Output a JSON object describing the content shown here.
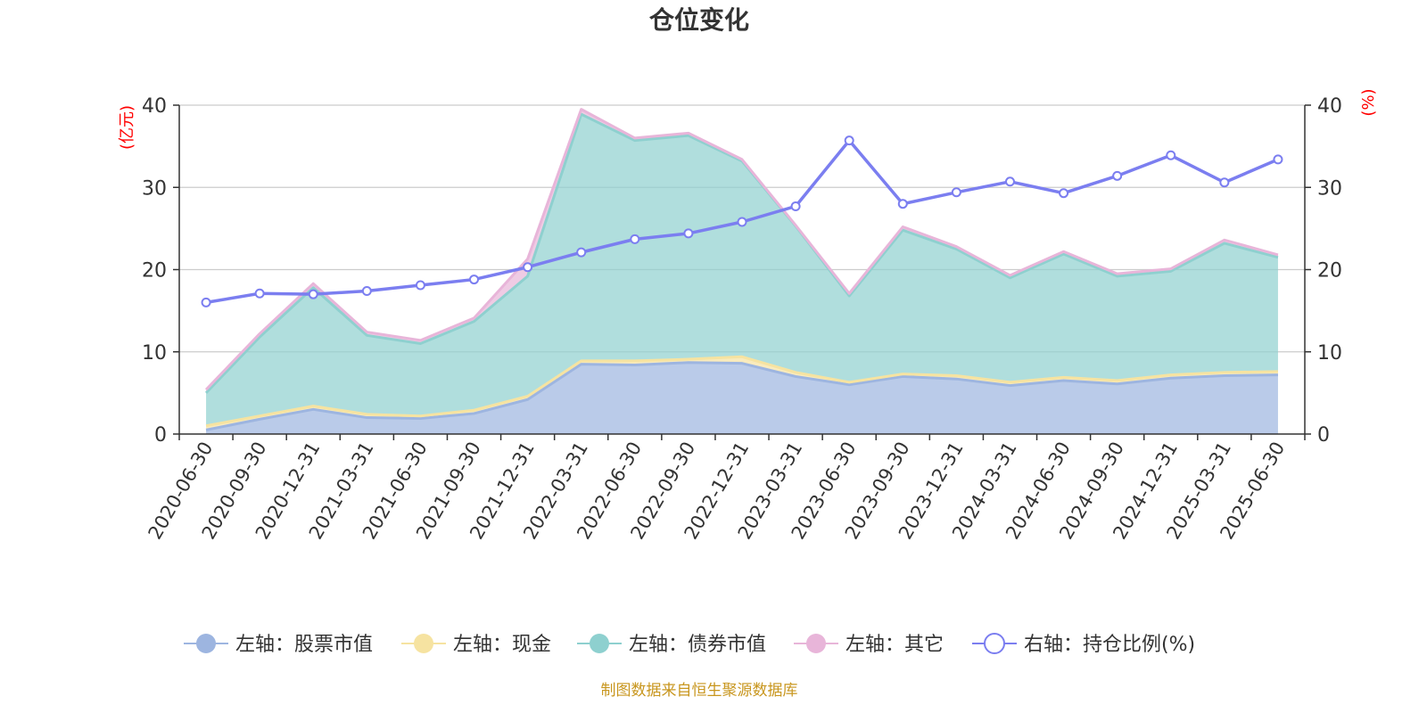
{
  "chart_data": {
    "type": "area",
    "title": "仓位变化",
    "left_unit": "(亿元)",
    "right_unit": "(%)",
    "left_ylim": [
      0,
      40
    ],
    "right_ylim": [
      0,
      40
    ],
    "left_ticks": [
      0,
      10,
      20,
      30,
      40
    ],
    "right_ticks": [
      0,
      10,
      20,
      30,
      40
    ],
    "grid": true,
    "legend_position": "bottom",
    "categories": [
      "2020-06-30",
      "2020-09-30",
      "2020-12-31",
      "2021-03-31",
      "2021-06-30",
      "2021-09-30",
      "2021-12-31",
      "2022-03-31",
      "2022-06-30",
      "2022-09-30",
      "2022-12-31",
      "2023-03-31",
      "2023-06-30",
      "2023-09-30",
      "2023-12-31",
      "2024-03-31",
      "2024-06-30",
      "2024-09-30",
      "2024-12-31",
      "2025-03-31",
      "2025-06-30"
    ],
    "stacked_series": [
      {
        "name": "左轴：股票市值",
        "axis": "left",
        "color": "#9db5e0",
        "values": [
          0.5,
          1.8,
          3.0,
          2.0,
          1.9,
          2.5,
          4.2,
          8.5,
          8.4,
          8.7,
          8.6,
          7.0,
          6.0,
          7.0,
          6.7,
          5.9,
          6.5,
          6.1,
          6.8,
          7.1,
          7.2
        ]
      },
      {
        "name": "左轴：现金",
        "axis": "left",
        "color": "#f6e3a1",
        "values": [
          0.5,
          0.4,
          0.4,
          0.4,
          0.3,
          0.4,
          0.4,
          0.4,
          0.5,
          0.4,
          0.8,
          0.5,
          0.3,
          0.3,
          0.4,
          0.4,
          0.4,
          0.4,
          0.4,
          0.4,
          0.4
        ]
      },
      {
        "name": "左轴：债券市值",
        "axis": "left",
        "color": "#8ed0cf",
        "values": [
          4.0,
          9.6,
          14.4,
          9.6,
          8.8,
          10.8,
          14.6,
          30.0,
          26.8,
          27.2,
          23.8,
          17.8,
          10.5,
          17.5,
          15.4,
          12.7,
          15.0,
          12.7,
          12.6,
          15.7,
          13.9
        ]
      },
      {
        "name": "左轴：其它",
        "axis": "left",
        "color": "#e8b5d9",
        "values": [
          0.4,
          0.4,
          0.5,
          0.4,
          0.4,
          0.4,
          2.1,
          0.6,
          0.3,
          0.3,
          0.2,
          0.1,
          0.3,
          0.4,
          0.3,
          0.3,
          0.3,
          0.3,
          0.3,
          0.4,
          0.3
        ]
      }
    ],
    "line_series": {
      "name": "右轴：持仓比例(%)",
      "axis": "right",
      "color": "#7b7ef0",
      "values": [
        16.0,
        17.1,
        17.0,
        17.4,
        18.1,
        18.8,
        20.3,
        22.1,
        23.7,
        24.4,
        25.8,
        27.7,
        35.7,
        28.0,
        29.4,
        30.7,
        29.3,
        31.4,
        33.9,
        30.6,
        33.4
      ]
    }
  },
  "legend": [
    {
      "label": "左轴：股票市值",
      "color": "#9db5e0",
      "kind": "area"
    },
    {
      "label": "左轴：现金",
      "color": "#f6e3a1",
      "kind": "area"
    },
    {
      "label": "左轴：债券市值",
      "color": "#8ed0cf",
      "kind": "area"
    },
    {
      "label": "左轴：其它",
      "color": "#e8b5d9",
      "kind": "area"
    },
    {
      "label": "右轴：持仓比例(%)",
      "color": "#7b7ef0",
      "kind": "line"
    }
  ],
  "footer": {
    "source": "制图数据来自恒生聚源数据库",
    "color": "#c8961e"
  }
}
